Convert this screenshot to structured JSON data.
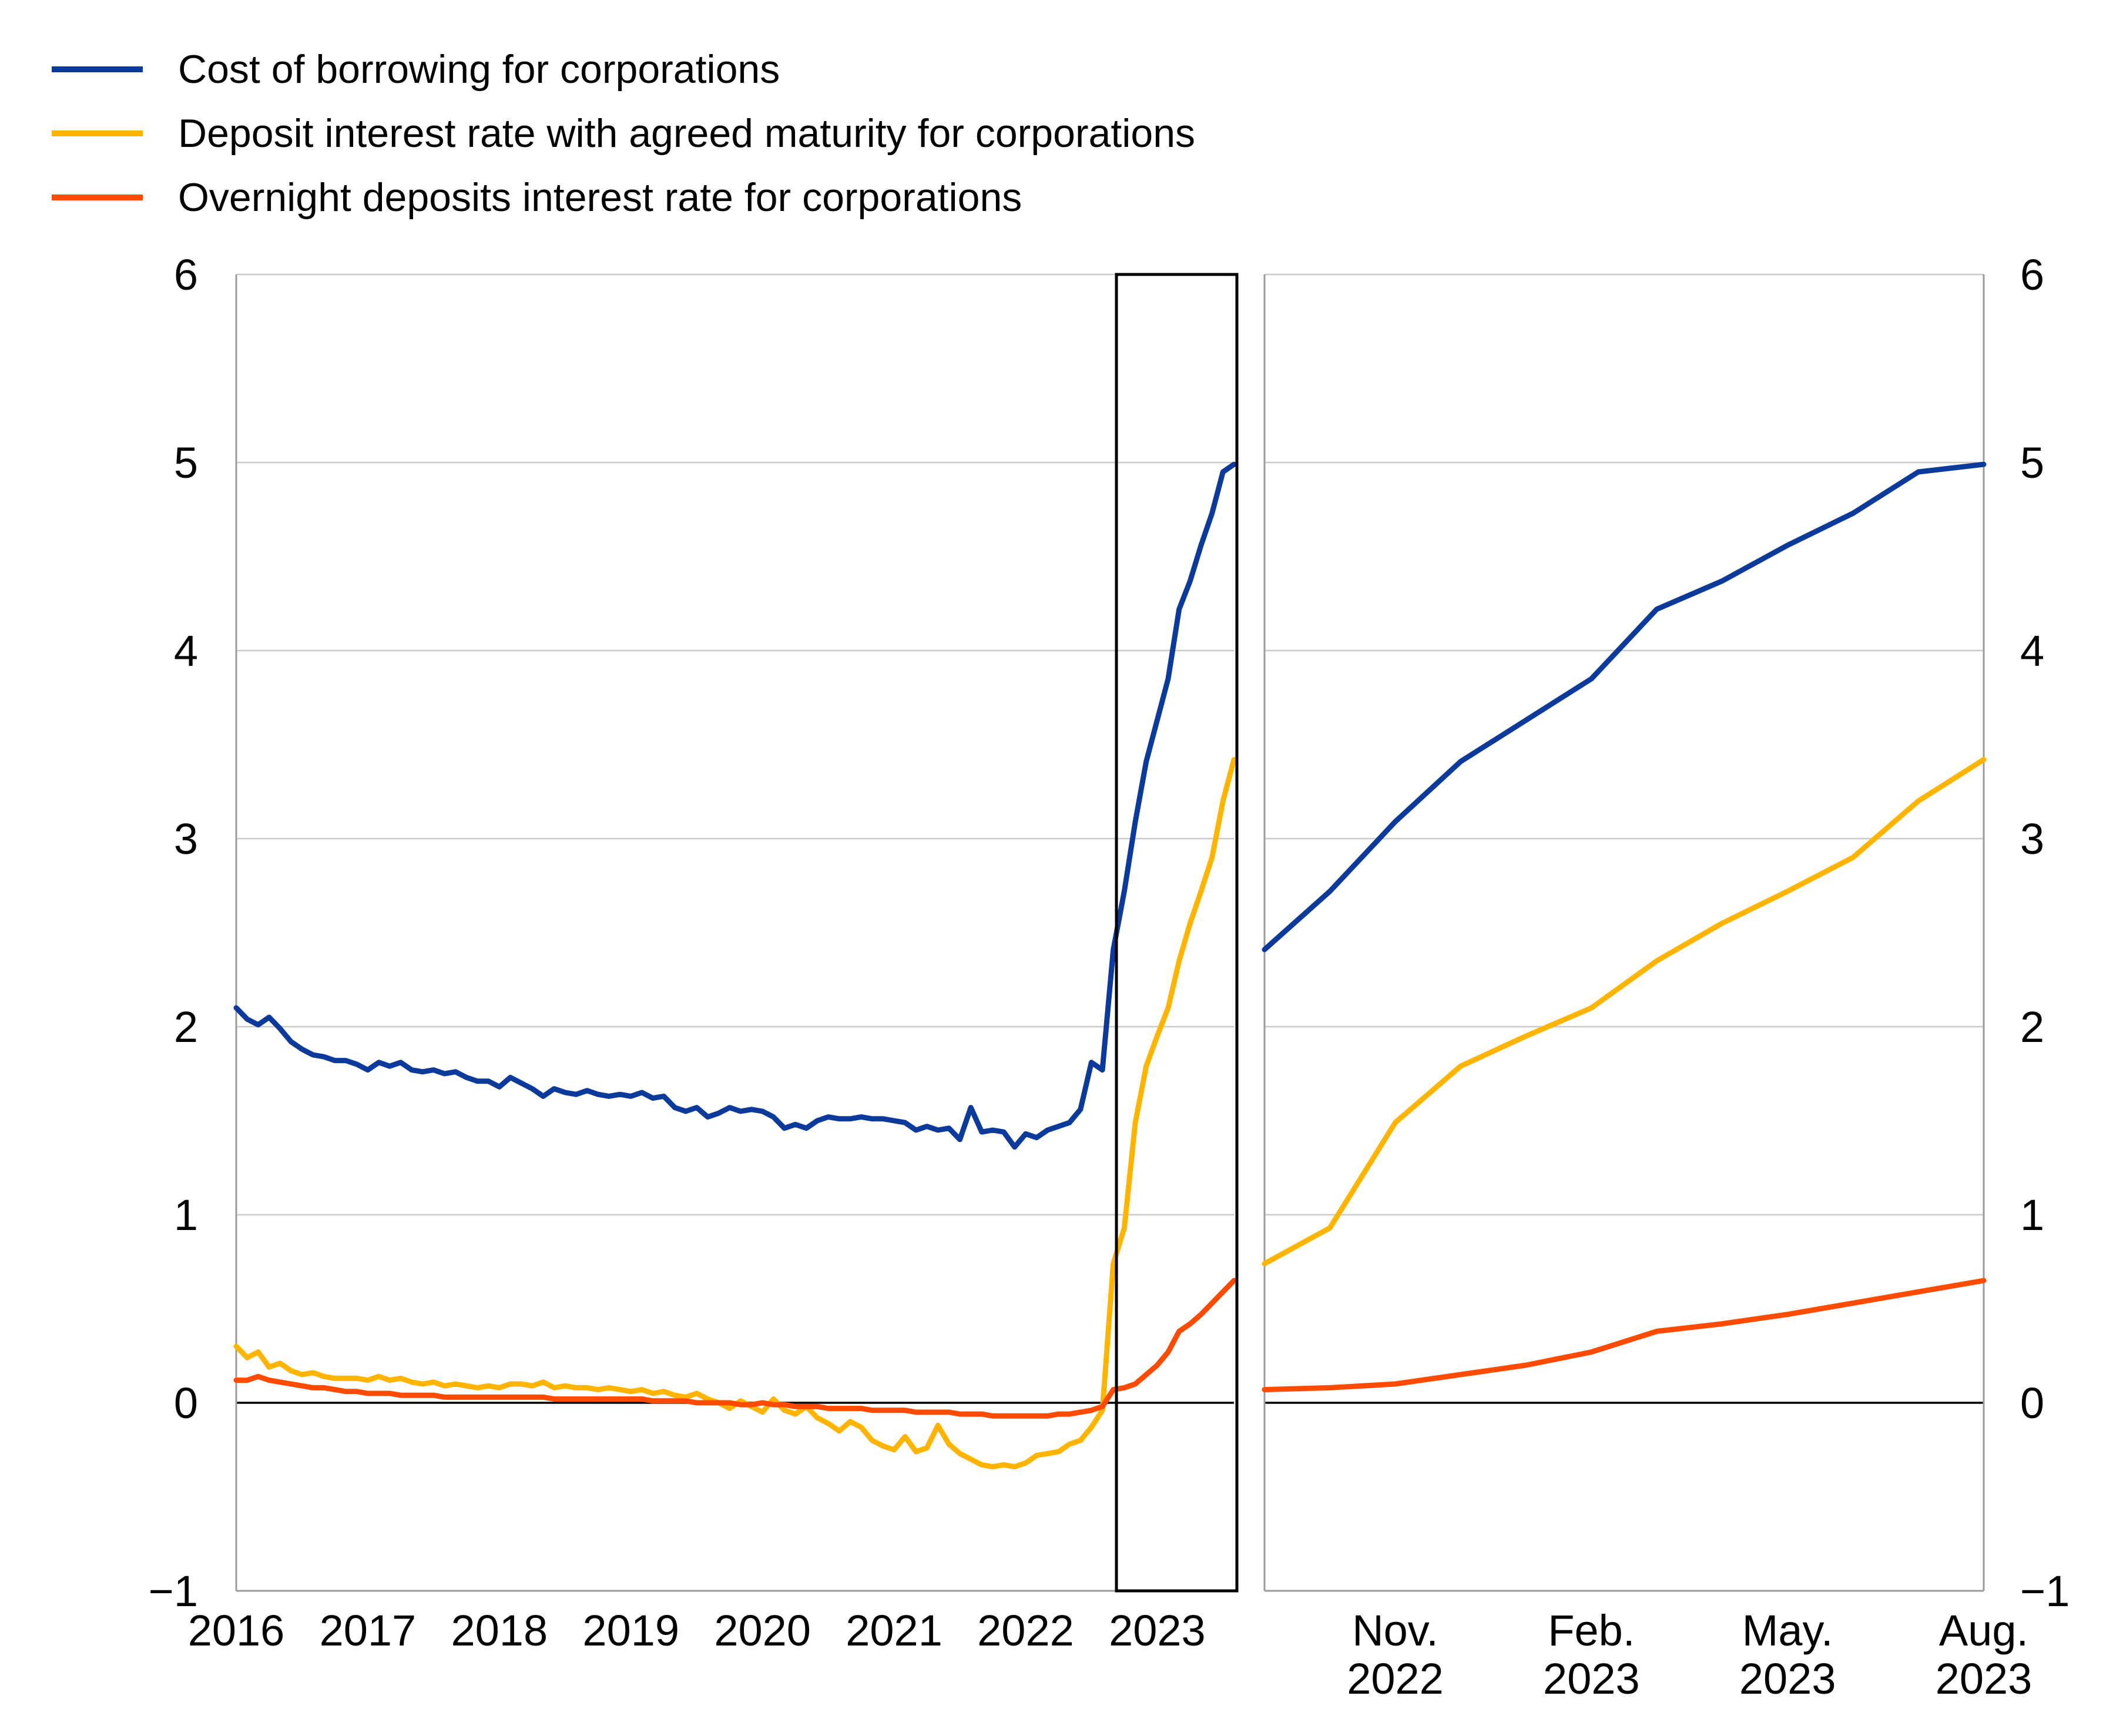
{
  "page": {
    "background_color": "#ffffff"
  },
  "legend": {
    "position": "top-left",
    "items": [
      {
        "label": "Cost of borrowing for corporations",
        "color": "#0c3a9b",
        "series_id": "cost_of_borrowing"
      },
      {
        "label": "Deposit interest rate with agreed maturity for corporations",
        "color": "#ffb400",
        "series_id": "deposit_agreed_maturity"
      },
      {
        "label": "Overnight deposits interest rate for corporations",
        "color": "#ff4b00",
        "series_id": "overnight_deposits"
      }
    ]
  },
  "style_colors": {
    "gridline": "#c9c9c9",
    "frame": "#9b9b9b",
    "zero_line": "#000000",
    "highlight_box": "#000000",
    "text": "#000000"
  },
  "chart_data": [
    {
      "type": "line",
      "panel": "left-full-history",
      "title": "",
      "xlabel": "",
      "ylabel": "",
      "x_start": "2016-01",
      "x_end": "2023-08",
      "frequency": "monthly",
      "ylim": [
        -1,
        6
      ],
      "grid": true,
      "y_ticks": [
        {
          "value": 6,
          "label": "6"
        },
        {
          "value": 5,
          "label": "5"
        },
        {
          "value": 4,
          "label": "4"
        },
        {
          "value": 3,
          "label": "3"
        },
        {
          "value": 2,
          "label": "2"
        },
        {
          "value": 1,
          "label": "1"
        },
        {
          "value": 0,
          "label": "0"
        },
        {
          "value": -1,
          "label": "−1"
        }
      ],
      "x_tick_labels": [
        "2016",
        "2017",
        "2018",
        "2019",
        "2020",
        "2021",
        "2022",
        "2023"
      ],
      "highlight_box": {
        "from": "2022-09",
        "to": "2023-08",
        "meaning": "region shown enlarged in right panel"
      },
      "series": [
        {
          "name": "Cost of borrowing for corporations",
          "color": "#0c3a9b",
          "values": [
            2.1,
            2.04,
            2.01,
            2.05,
            1.99,
            1.92,
            1.88,
            1.85,
            1.84,
            1.82,
            1.82,
            1.8,
            1.77,
            1.81,
            1.79,
            1.81,
            1.77,
            1.76,
            1.77,
            1.75,
            1.76,
            1.73,
            1.71,
            1.71,
            1.68,
            1.73,
            1.7,
            1.67,
            1.63,
            1.67,
            1.65,
            1.64,
            1.66,
            1.64,
            1.63,
            1.64,
            1.63,
            1.65,
            1.62,
            1.63,
            1.57,
            1.55,
            1.57,
            1.52,
            1.54,
            1.57,
            1.55,
            1.56,
            1.55,
            1.52,
            1.46,
            1.48,
            1.46,
            1.5,
            1.52,
            1.51,
            1.51,
            1.52,
            1.51,
            1.51,
            1.5,
            1.49,
            1.45,
            1.47,
            1.45,
            1.46,
            1.4,
            1.57,
            1.44,
            1.45,
            1.44,
            1.36,
            1.43,
            1.41,
            1.45,
            1.47,
            1.49,
            1.56,
            1.81,
            1.77,
            2.41,
            2.72,
            3.09,
            3.41,
            3.63,
            3.85,
            4.22,
            4.37,
            4.56,
            4.73,
            4.95,
            4.99
          ]
        },
        {
          "name": "Deposit interest rate with agreed maturity for corporations",
          "color": "#ffb400",
          "values": [
            0.3,
            0.24,
            0.27,
            0.19,
            0.21,
            0.17,
            0.15,
            0.16,
            0.14,
            0.13,
            0.13,
            0.13,
            0.12,
            0.14,
            0.12,
            0.13,
            0.11,
            0.1,
            0.11,
            0.09,
            0.1,
            0.09,
            0.08,
            0.09,
            0.08,
            0.1,
            0.1,
            0.09,
            0.11,
            0.08,
            0.09,
            0.08,
            0.08,
            0.07,
            0.08,
            0.07,
            0.06,
            0.07,
            0.05,
            0.06,
            0.04,
            0.03,
            0.05,
            0.02,
            0.0,
            -0.03,
            0.01,
            -0.02,
            -0.05,
            0.02,
            -0.04,
            -0.06,
            -0.02,
            -0.08,
            -0.11,
            -0.15,
            -0.1,
            -0.13,
            -0.2,
            -0.23,
            -0.25,
            -0.18,
            -0.26,
            -0.24,
            -0.12,
            -0.22,
            -0.27,
            -0.3,
            -0.33,
            -0.34,
            -0.33,
            -0.34,
            -0.32,
            -0.28,
            -0.27,
            -0.26,
            -0.22,
            -0.2,
            -0.13,
            -0.04,
            0.74,
            0.93,
            1.49,
            1.79,
            1.95,
            2.1,
            2.35,
            2.55,
            2.72,
            2.9,
            3.2,
            3.42
          ]
        },
        {
          "name": "Overnight deposits interest rate for corporations",
          "color": "#ff4b00",
          "values": [
            0.12,
            0.12,
            0.14,
            0.12,
            0.11,
            0.1,
            0.09,
            0.08,
            0.08,
            0.07,
            0.06,
            0.06,
            0.05,
            0.05,
            0.05,
            0.04,
            0.04,
            0.04,
            0.04,
            0.03,
            0.03,
            0.03,
            0.03,
            0.03,
            0.03,
            0.03,
            0.03,
            0.03,
            0.03,
            0.02,
            0.02,
            0.02,
            0.02,
            0.02,
            0.02,
            0.02,
            0.02,
            0.02,
            0.01,
            0.01,
            0.01,
            0.01,
            0.0,
            0.0,
            0.0,
            0.0,
            -0.01,
            -0.01,
            0.0,
            -0.01,
            -0.01,
            -0.02,
            -0.02,
            -0.02,
            -0.03,
            -0.03,
            -0.03,
            -0.03,
            -0.04,
            -0.04,
            -0.04,
            -0.04,
            -0.05,
            -0.05,
            -0.05,
            -0.05,
            -0.06,
            -0.06,
            -0.06,
            -0.07,
            -0.07,
            -0.07,
            -0.07,
            -0.07,
            -0.07,
            -0.06,
            -0.06,
            -0.05,
            -0.04,
            -0.02,
            0.07,
            0.08,
            0.1,
            0.15,
            0.2,
            0.27,
            0.38,
            0.42,
            0.47,
            0.53,
            0.59,
            0.65
          ]
        }
      ]
    },
    {
      "type": "line",
      "panel": "right-zoomed",
      "title": "",
      "xlabel": "",
      "ylabel": "",
      "x_start": "2022-09",
      "x_end": "2023-08",
      "frequency": "monthly",
      "ylim": [
        -1,
        6
      ],
      "grid": true,
      "y_ticks": [
        {
          "value": 6,
          "label": "6"
        },
        {
          "value": 5,
          "label": "5"
        },
        {
          "value": 4,
          "label": "4"
        },
        {
          "value": 3,
          "label": "3"
        },
        {
          "value": 2,
          "label": "2"
        },
        {
          "value": 1,
          "label": "1"
        },
        {
          "value": 0,
          "label": "0"
        },
        {
          "value": -1,
          "label": "−1"
        }
      ],
      "x_ticks": [
        {
          "month_index": 2,
          "line1": "Nov.",
          "line2": "2022"
        },
        {
          "month_index": 5,
          "line1": "Feb.",
          "line2": "2023"
        },
        {
          "month_index": 8,
          "line1": "May.",
          "line2": "2023"
        },
        {
          "month_index": 11,
          "line1": "Aug.",
          "line2": "2023"
        }
      ],
      "series": [
        {
          "name": "Cost of borrowing for corporations",
          "color": "#0c3a9b",
          "values": [
            2.41,
            2.72,
            3.09,
            3.41,
            3.63,
            3.85,
            4.22,
            4.37,
            4.56,
            4.73,
            4.95,
            4.99
          ]
        },
        {
          "name": "Deposit interest rate with agreed maturity for corporations",
          "color": "#ffb400",
          "values": [
            0.74,
            0.93,
            1.49,
            1.79,
            1.95,
            2.1,
            2.35,
            2.55,
            2.72,
            2.9,
            3.2,
            3.42
          ]
        },
        {
          "name": "Overnight deposits interest rate for corporations",
          "color": "#ff4b00",
          "values": [
            0.07,
            0.08,
            0.1,
            0.15,
            0.2,
            0.27,
            0.38,
            0.42,
            0.47,
            0.53,
            0.59,
            0.65
          ]
        }
      ]
    }
  ]
}
